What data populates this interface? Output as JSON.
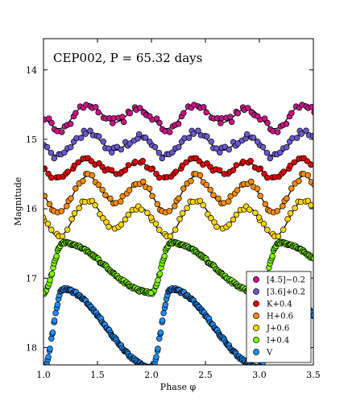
{
  "chart_data": {
    "type": "scatter",
    "title": "CEP002, P = 65.32 days",
    "xlabel": "Phase φ",
    "ylabel": "Magnitude",
    "xlim": [
      1.0,
      3.5
    ],
    "ylim": [
      18.25,
      13.55
    ],
    "y_inverted": true,
    "xticks": [
      1.0,
      1.5,
      2.0,
      2.5,
      3.0,
      3.5
    ],
    "xtick_labels": [
      "1.0",
      "1.5",
      "2.0",
      "2.5",
      "3.0",
      "3.5"
    ],
    "yticks": [
      14,
      15,
      16,
      17,
      18
    ],
    "ytick_labels": [
      "14",
      "15",
      "16",
      "17",
      "18"
    ],
    "grid": false,
    "legend_position": "bottom-right",
    "model_curve": "black line",
    "series": [
      {
        "name": "[4.5]−0.2",
        "color": "#c71585",
        "mean": 14.66,
        "amp": 0.14,
        "shape": "bump",
        "n": 34,
        "scatter": 0.06,
        "model": true
      },
      {
        "name": "[3.6]+0.2",
        "color": "#6a5acd",
        "mean": 15.07,
        "amp": 0.13,
        "shape": "bump",
        "n": 34,
        "scatter": 0.05,
        "model": true
      },
      {
        "name": "K+0.4",
        "color": "#e00000",
        "mean": 15.42,
        "amp": 0.1,
        "shape": "bump",
        "n": 32,
        "scatter": 0.04,
        "model": true
      },
      {
        "name": "H+0.6",
        "color": "#ff8c00",
        "mean": 15.78,
        "amp": 0.2,
        "shape": "bump",
        "n": 32,
        "scatter": 0.04,
        "model": true
      },
      {
        "name": "J+0.6",
        "color": "#ffd700",
        "mean": 16.13,
        "amp": 0.2,
        "shape": "bump",
        "n": 30,
        "scatter": 0.04,
        "model": true
      },
      {
        "name": "I+0.4",
        "color": "#7fff00",
        "mean": 16.85,
        "amp": 0.36,
        "shape": "saw",
        "n": 120,
        "scatter": 0.02,
        "model": false
      },
      {
        "name": "V",
        "color": "#1e90ff",
        "mean": 17.72,
        "amp": 0.56,
        "shape": "saw",
        "n": 120,
        "scatter": 0.02,
        "model": false
      }
    ]
  }
}
